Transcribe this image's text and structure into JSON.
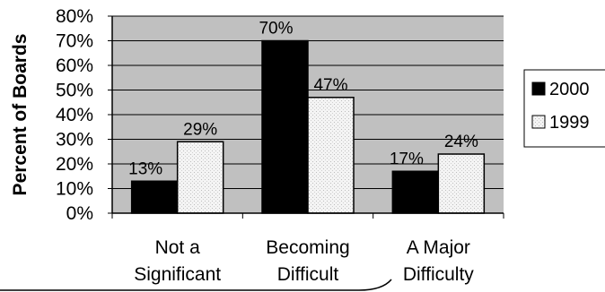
{
  "chart_data": {
    "type": "bar",
    "categories": [
      [
        "Not a",
        "Significant"
      ],
      [
        "Becoming",
        "Difficult"
      ],
      [
        "A Major",
        "Difficulty"
      ]
    ],
    "series": [
      {
        "name": "2000",
        "values": [
          13,
          70,
          17
        ],
        "labels": [
          "13%",
          "70%",
          "17%"
        ],
        "fill": "#000000"
      },
      {
        "name": "1999",
        "values": [
          29,
          47,
          24
        ],
        "labels": [
          "29%",
          "47%",
          "24%"
        ],
        "fill": "#f2f2f2"
      }
    ],
    "ylabel": "Percent of Boards",
    "xlabel": "",
    "title": "",
    "ylim": [
      0,
      80
    ],
    "yticks": [
      0,
      10,
      20,
      30,
      40,
      50,
      60,
      70,
      80
    ],
    "ytick_labels": [
      "0%",
      "10%",
      "20%",
      "30%",
      "40%",
      "50%",
      "60%",
      "70%",
      "80%"
    ],
    "grid": true,
    "legend_position": "right",
    "plot_background": "#c0c0c0"
  }
}
